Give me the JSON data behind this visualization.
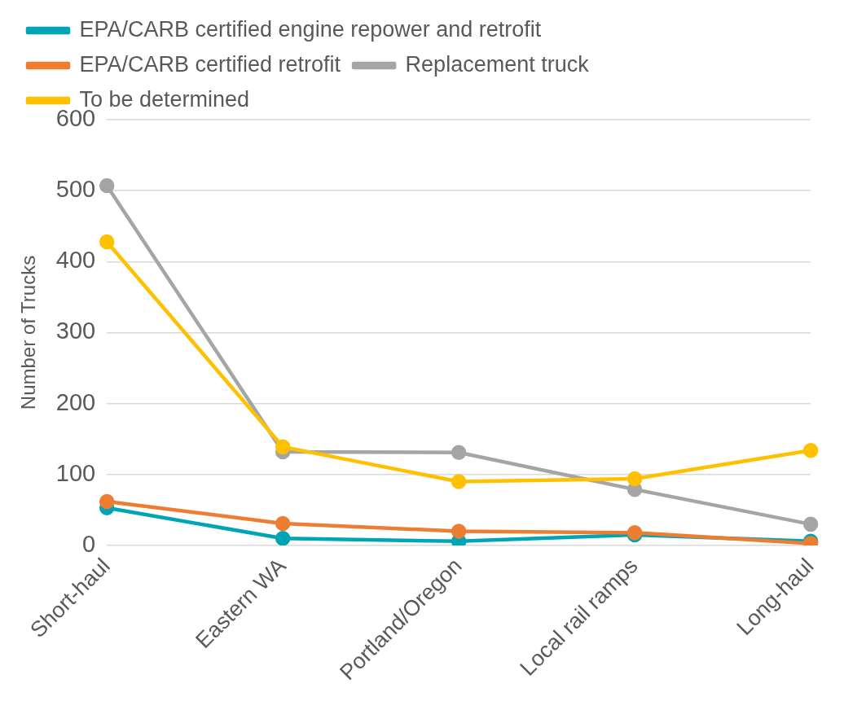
{
  "chart_data": {
    "type": "line",
    "ylabel": "Number of Trucks",
    "categories": [
      "Short-haul",
      "Eastern WA",
      "Portland/Oregon",
      "Local rail ramps",
      "Long-haul"
    ],
    "series": [
      {
        "name": "EPA/CARB certified engine repower and retrofit",
        "color": "#00a5b5",
        "values": [
          53,
          10,
          6,
          15,
          6
        ]
      },
      {
        "name": "EPA/CARB certified retrofit",
        "color": "#ed7d31",
        "values": [
          62,
          31,
          20,
          18,
          3
        ]
      },
      {
        "name": "Replacement truck",
        "color": "#a5a5a5",
        "values": [
          507,
          132,
          131,
          79,
          30
        ]
      },
      {
        "name": "To be determined",
        "color": "#ffc000",
        "values": [
          428,
          139,
          90,
          94,
          134
        ]
      }
    ],
    "ylim": [
      0,
      600
    ],
    "yticks": [
      0,
      100,
      200,
      300,
      400,
      500,
      600
    ],
    "grid": "y",
    "legend": "top left",
    "marker": "circle",
    "line_style": "solid"
  }
}
